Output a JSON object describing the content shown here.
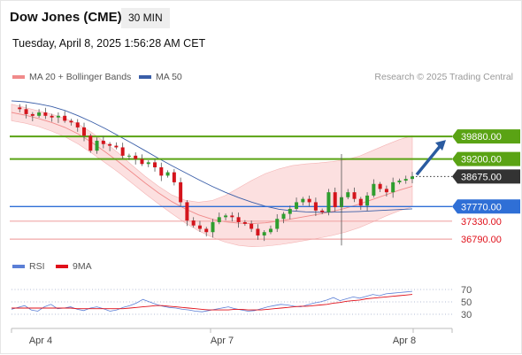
{
  "header": {
    "title": "Dow Jones (CME)",
    "timeframe": "30 MIN",
    "datetime": "Tuesday, April 8, 2025 1:56:28 AM CET"
  },
  "price_legend": [
    {
      "label": "MA 20 + Bollinger Bands",
      "color": "#f08a8a"
    },
    {
      "label": "MA 50",
      "color": "#3a5ea8"
    }
  ],
  "rsi_legend": [
    {
      "label": "RSI",
      "color": "#5b7fd6"
    },
    {
      "label": "9MA",
      "color": "#e0101a"
    }
  ],
  "research_note": "Research © 2025 Trading Central",
  "colors": {
    "resistance": "#5aa314",
    "support": "#2f6fd6",
    "support_weak": "#f0a7a7",
    "support_label": "#e0101a",
    "current": "#333333",
    "arrow": "#2a5ba0",
    "bullish": "#2e9e2e",
    "bearish": "#d4141c",
    "band": "#fbd6d6"
  },
  "chart_data": [
    {
      "type": "line",
      "title": "",
      "x_ticks": [
        "Apr 4",
        "Apr 7",
        "Apr 8"
      ],
      "ylim": [
        36500,
        41400
      ],
      "series": [
        {
          "name": "MA 20 + Bollinger Bands",
          "upper": [
            40850,
            40750,
            40650,
            40550,
            40420,
            40250,
            40000,
            39700,
            39380,
            39020,
            38680,
            38380,
            38120,
            37960,
            37900,
            37950,
            38100,
            38330,
            38560,
            38760,
            38900,
            39000,
            39050,
            39080,
            39120,
            39180,
            39280,
            39450,
            39620,
            39780,
            39900
          ],
          "middle": [
            40600,
            40520,
            40420,
            40300,
            40150,
            39950,
            39700,
            39420,
            39120,
            38800,
            38480,
            38180,
            37920,
            37700,
            37520,
            37390,
            37310,
            37270,
            37260,
            37280,
            37330,
            37400,
            37470,
            37540,
            37620,
            37720,
            37840,
            37980,
            38120,
            38260,
            38380
          ],
          "lower": [
            40350,
            40280,
            40180,
            40040,
            39870,
            39650,
            39380,
            39090,
            38800,
            38480,
            38160,
            37850,
            37560,
            37280,
            37040,
            36850,
            36700,
            36600,
            36560,
            36580,
            36620,
            36680,
            36750,
            36820,
            36900,
            37000,
            37130,
            37300,
            37480,
            37640,
            37760
          ]
        },
        {
          "name": "MA 50",
          "values": [
            40950,
            40920,
            40860,
            40780,
            40660,
            40500,
            40320,
            40120,
            39900,
            39680,
            39450,
            39220,
            39000,
            38790,
            38580,
            38380,
            38200,
            38040,
            37900,
            37780,
            37690,
            37640,
            37610,
            37600,
            37600,
            37610,
            37620,
            37640,
            37660,
            37680,
            37700
          ]
        },
        {
          "name": "Price",
          "values": [
            40750,
            40700,
            40550,
            40500,
            40600,
            40500,
            40450,
            40500,
            40350,
            40300,
            40150,
            39900,
            39450,
            39750,
            39650,
            39600,
            39550,
            39300,
            39300,
            39200,
            39050,
            39100,
            38950,
            38700,
            38800,
            38500,
            37900,
            37350,
            37200,
            37100,
            37000,
            37300,
            37450,
            37500,
            37450,
            37300,
            37250,
            37100,
            36900,
            37000,
            37100,
            37400,
            37550,
            37700,
            37900,
            38000,
            37900,
            37650,
            37600,
            38200,
            37750,
            38050,
            38200,
            38000,
            37800,
            38100,
            38450,
            38300,
            38200,
            38500,
            38550,
            38600,
            38675
          ]
        }
      ],
      "levels": [
        {
          "label": "39880.00",
          "value": 39880,
          "kind": "resistance"
        },
        {
          "label": "39200.00",
          "value": 39200,
          "kind": "resistance"
        },
        {
          "label": "38675.00",
          "value": 38675,
          "kind": "current"
        },
        {
          "label": "37770.00",
          "value": 37770,
          "kind": "support"
        },
        {
          "label": "37330.00",
          "value": 37330,
          "kind": "support_weak"
        },
        {
          "label": "36790.00",
          "value": 36790,
          "kind": "support_weak"
        }
      ],
      "forecast_target": 39880
    },
    {
      "type": "line",
      "title": "",
      "ylim": [
        10,
        90
      ],
      "y_ticks": [
        70,
        50,
        30
      ],
      "series": [
        {
          "name": "RSI",
          "values": [
            38,
            41,
            44,
            37,
            35,
            42,
            46,
            39,
            40,
            42,
            38,
            36,
            40,
            42,
            39,
            35,
            37,
            41,
            44,
            48,
            54,
            50,
            46,
            43,
            41,
            40,
            38,
            37,
            35,
            34,
            36,
            38,
            40,
            42,
            39,
            37,
            35,
            36,
            39,
            42,
            44,
            46,
            45,
            43,
            42,
            45,
            48,
            50,
            53,
            57,
            52,
            55,
            58,
            56,
            59,
            62,
            60,
            63,
            64,
            65,
            66,
            67
          ]
        },
        {
          "name": "9MA",
          "values": [
            40,
            40,
            40,
            40,
            40,
            40,
            40,
            40,
            40,
            40,
            39,
            39,
            39,
            39,
            39,
            39,
            39,
            39,
            40,
            41,
            42,
            43,
            44,
            44,
            43,
            42,
            41,
            40,
            39,
            38,
            37,
            37,
            37,
            37,
            38,
            38,
            37,
            37,
            37,
            38,
            39,
            40,
            41,
            42,
            43,
            43,
            44,
            45,
            46,
            48,
            49,
            51,
            52,
            53,
            55,
            56,
            57,
            58,
            59,
            60,
            61,
            62
          ]
        }
      ]
    }
  ]
}
